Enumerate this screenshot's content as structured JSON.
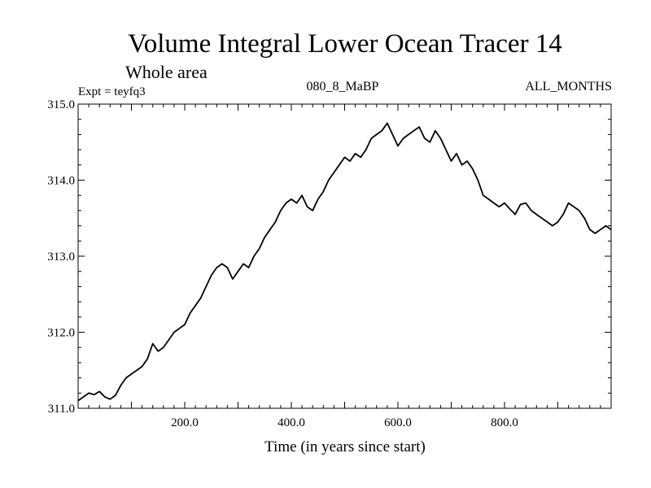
{
  "chart_data": {
    "type": "line",
    "title": "Volume Integral Lower Ocean Tracer 14",
    "subtitle": "Whole area",
    "expt_label": "Expt = teyfq3",
    "center_label": "080_8_MaBP",
    "right_label": "ALL_MONTHS",
    "xlabel": "Time (in years since start)",
    "ylabel": "",
    "xlim": [
      0,
      1000
    ],
    "ylim": [
      311.0,
      315.0
    ],
    "x_ticks": [
      200,
      400,
      600,
      800
    ],
    "x_tick_labels": [
      "200.0",
      "400.0",
      "600.0",
      "800.0"
    ],
    "y_ticks": [
      311,
      312,
      313,
      314,
      315
    ],
    "y_tick_labels": [
      "311.0",
      "312.0",
      "313.0",
      "314.0",
      "315.0"
    ],
    "grid": false,
    "series": [
      {
        "name": "Tracer 14",
        "x": [
          0,
          10,
          20,
          30,
          40,
          50,
          60,
          70,
          80,
          90,
          100,
          110,
          120,
          130,
          140,
          150,
          160,
          170,
          180,
          190,
          200,
          210,
          220,
          230,
          240,
          250,
          260,
          270,
          280,
          290,
          300,
          310,
          320,
          330,
          340,
          350,
          360,
          370,
          380,
          390,
          400,
          410,
          420,
          430,
          440,
          450,
          460,
          470,
          480,
          490,
          500,
          510,
          520,
          530,
          540,
          550,
          560,
          570,
          580,
          590,
          600,
          610,
          620,
          630,
          640,
          650,
          660,
          670,
          680,
          690,
          700,
          710,
          720,
          730,
          740,
          750,
          760,
          770,
          780,
          790,
          800,
          810,
          820,
          830,
          840,
          850,
          860,
          870,
          880,
          890,
          900,
          910,
          920,
          930,
          940,
          950,
          960,
          970,
          980,
          990,
          1000
        ],
        "values": [
          311.1,
          311.15,
          311.2,
          311.18,
          311.22,
          311.15,
          311.12,
          311.17,
          311.3,
          311.4,
          311.45,
          311.5,
          311.55,
          311.65,
          311.85,
          311.75,
          311.8,
          311.9,
          312.0,
          312.05,
          312.1,
          312.25,
          312.35,
          312.45,
          312.6,
          312.75,
          312.85,
          312.9,
          312.85,
          312.7,
          312.8,
          312.9,
          312.85,
          313.0,
          313.1,
          313.25,
          313.35,
          313.45,
          313.6,
          313.7,
          313.75,
          313.7,
          313.8,
          313.65,
          313.6,
          313.75,
          313.85,
          314.0,
          314.1,
          314.2,
          314.3,
          314.25,
          314.35,
          314.3,
          314.4,
          314.55,
          314.6,
          314.65,
          314.75,
          314.6,
          314.45,
          314.55,
          314.6,
          314.65,
          314.7,
          314.55,
          314.5,
          314.65,
          314.55,
          314.4,
          314.25,
          314.35,
          314.2,
          314.25,
          314.15,
          314.0,
          313.8,
          313.75,
          313.7,
          313.65,
          313.7,
          313.62,
          313.55,
          313.68,
          313.7,
          313.6,
          313.55,
          313.5,
          313.45,
          313.4,
          313.45,
          313.55,
          313.7,
          313.65,
          313.6,
          313.5,
          313.35,
          313.3,
          313.35,
          313.4,
          313.35
        ]
      }
    ]
  }
}
